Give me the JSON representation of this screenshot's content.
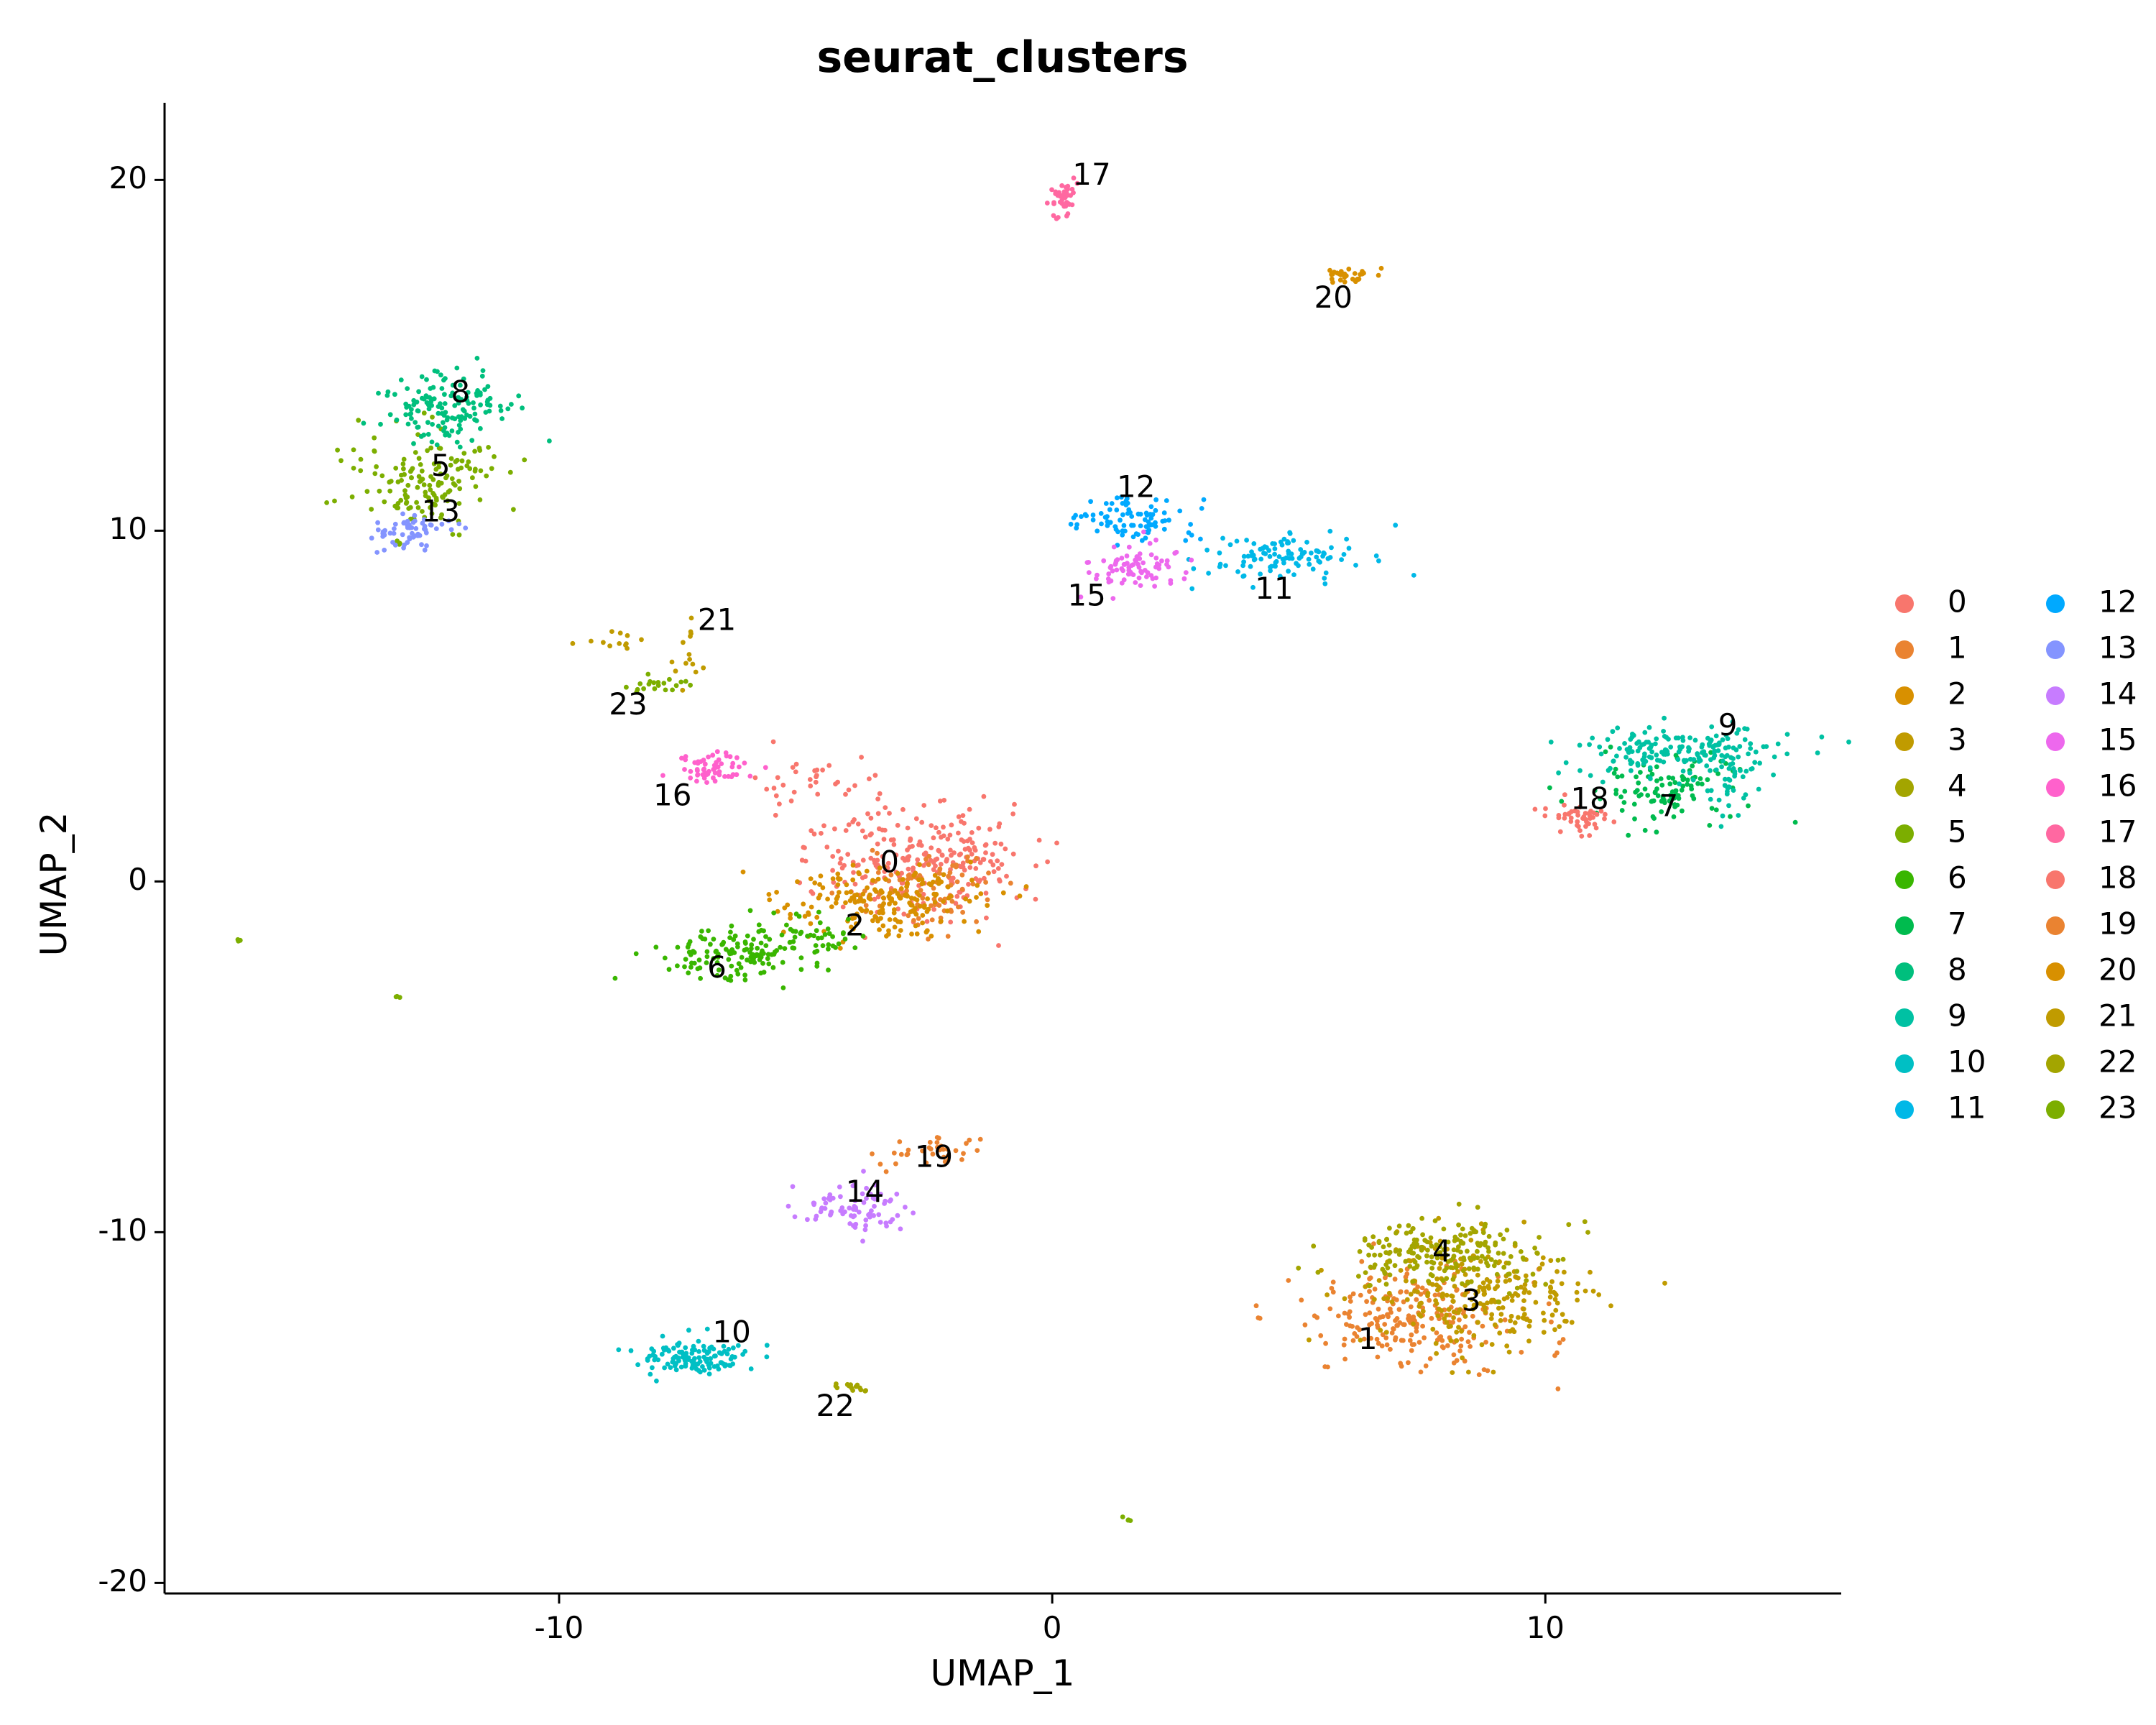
{
  "chart_data": {
    "type": "scatter",
    "title": "seurat_clusters",
    "xlabel": "UMAP_1",
    "ylabel": "UMAP_2",
    "xlim": [
      -18,
      16
    ],
    "ylim": [
      -20.3,
      22.2
    ],
    "x_ticks": [
      {
        "value": -10,
        "label": "-10"
      },
      {
        "value": 0,
        "label": "0"
      },
      {
        "value": 10,
        "label": "10"
      }
    ],
    "y_ticks": [
      {
        "value": -20,
        "label": "-20"
      },
      {
        "value": -10,
        "label": "-10"
      },
      {
        "value": 0,
        "label": "0"
      },
      {
        "value": 10,
        "label": "10"
      },
      {
        "value": 20,
        "label": "20"
      }
    ],
    "grid": false,
    "legend_position": "right",
    "legend_columns": 2,
    "clusters": [
      {
        "id": "0",
        "color": "#F8766D",
        "label_pos": [
          -3.3,
          0.5
        ],
        "groups": [
          {
            "c": [
              -2.6,
              0.6
            ],
            "s": [
              1.3,
              0.9
            ],
            "n": 260
          },
          {
            "c": [
              -5.0,
              2.8
            ],
            "s": [
              0.9,
              0.5
            ],
            "n": 30
          }
        ]
      },
      {
        "id": "1",
        "color": "#EA8331",
        "label_pos": [
          6.4,
          -13.1
        ],
        "groups": [
          {
            "c": [
              7.3,
              -12.4
            ],
            "s": [
              1.3,
              0.9
            ],
            "n": 230
          },
          {
            "c": [
              -2.5,
              -0.2
            ],
            "s": [
              0.8,
              0.7
            ],
            "n": 80
          }
        ]
      },
      {
        "id": "2",
        "color": "#D89000",
        "label_pos": [
          -4.0,
          -1.3
        ],
        "groups": [
          {
            "c": [
              -3.4,
              -0.6
            ],
            "s": [
              1.2,
              0.6
            ],
            "n": 200
          }
        ]
      },
      {
        "id": "3",
        "color": "#C09B00",
        "label_pos": [
          8.5,
          -12.0
        ],
        "groups": [
          {
            "c": [
              8.6,
              -11.8
            ],
            "s": [
              1.4,
              0.9
            ],
            "n": 240
          }
        ]
      },
      {
        "id": "4",
        "color": "#A3A500",
        "label_pos": [
          7.9,
          -10.6
        ],
        "groups": [
          {
            "c": [
              8.0,
              -10.6
            ],
            "s": [
              1.2,
              0.6
            ],
            "n": 200
          }
        ]
      },
      {
        "id": "5",
        "color": "#7CAE00",
        "label_pos": [
          -12.4,
          11.8
        ],
        "groups": [
          {
            "c": [
              -12.6,
              11.5
            ],
            "s": [
              0.8,
              0.8
            ],
            "n": 150
          }
        ]
      },
      {
        "id": "6",
        "color": "#39B600",
        "label_pos": [
          -6.8,
          -2.5
        ],
        "groups": [
          {
            "c": [
              -6.4,
              -2.1
            ],
            "s": [
              0.9,
              0.5
            ],
            "n": 130
          },
          {
            "c": [
              -4.8,
              -1.6
            ],
            "s": [
              0.7,
              0.4
            ],
            "n": 40
          }
        ]
      },
      {
        "id": "7",
        "color": "#00BB4E",
        "label_pos": [
          12.5,
          2.1
        ],
        "groups": [
          {
            "c": [
              12.5,
              2.6
            ],
            "s": [
              1.0,
              0.6
            ],
            "n": 110
          }
        ]
      },
      {
        "id": "8",
        "color": "#00BF7D",
        "label_pos": [
          -12.0,
          13.9
        ],
        "groups": [
          {
            "c": [
              -12.3,
              13.5
            ],
            "s": [
              0.8,
              0.6
            ],
            "n": 140
          }
        ]
      },
      {
        "id": "9",
        "color": "#00C1A3",
        "label_pos": [
          13.7,
          4.4
        ],
        "groups": [
          {
            "c": [
              12.5,
              3.7
            ],
            "s": [
              1.2,
              0.4
            ],
            "n": 160
          },
          {
            "c": [
              13.8,
              3.0
            ],
            "s": [
              0.4,
              0.8
            ],
            "n": 50
          }
        ]
      },
      {
        "id": "10",
        "color": "#00BFC4",
        "label_pos": [
          -6.5,
          -12.9
        ],
        "groups": [
          {
            "c": [
              -7.2,
              -13.6
            ],
            "s": [
              0.7,
              0.3
            ],
            "n": 130
          }
        ]
      },
      {
        "id": "11",
        "color": "#00B8E7",
        "label_pos": [
          4.5,
          8.3
        ],
        "groups": [
          {
            "c": [
              4.8,
              9.2
            ],
            "s": [
              1.0,
              0.4
            ],
            "n": 110
          }
        ]
      },
      {
        "id": "12",
        "color": "#00A9FF",
        "label_pos": [
          1.7,
          11.2
        ],
        "groups": [
          {
            "c": [
              1.6,
              10.3
            ],
            "s": [
              0.8,
              0.4
            ],
            "n": 90
          }
        ]
      },
      {
        "id": "13",
        "color": "#8494FF",
        "label_pos": [
          -12.4,
          10.5
        ],
        "groups": [
          {
            "c": [
              -13.1,
              10.0
            ],
            "s": [
              0.5,
              0.3
            ],
            "n": 60
          }
        ]
      },
      {
        "id": "14",
        "color": "#C77CFF",
        "label_pos": [
          -3.8,
          -8.9
        ],
        "groups": [
          {
            "c": [
              -4.0,
              -9.3
            ],
            "s": [
              0.6,
              0.4
            ],
            "n": 80
          }
        ]
      },
      {
        "id": "15",
        "color": "#ED68ED",
        "label_pos": [
          0.7,
          8.1
        ],
        "groups": [
          {
            "c": [
              1.6,
              9.0
            ],
            "s": [
              0.6,
              0.4
            ],
            "n": 80
          }
        ]
      },
      {
        "id": "16",
        "color": "#FF61CC",
        "label_pos": [
          -7.7,
          2.4
        ],
        "groups": [
          {
            "c": [
              -6.9,
              3.2
            ],
            "s": [
              0.4,
              0.3
            ],
            "n": 60
          }
        ]
      },
      {
        "id": "17",
        "color": "#FF68A1",
        "label_pos": [
          0.8,
          20.1
        ],
        "groups": [
          {
            "c": [
              0.2,
              19.5
            ],
            "s": [
              0.15,
              0.3
            ],
            "n": 45
          }
        ]
      },
      {
        "id": "18",
        "color": "#F8766D",
        "label_pos": [
          10.9,
          2.3
        ],
        "groups": [
          {
            "c": [
              10.7,
              1.8
            ],
            "s": [
              0.5,
              0.3
            ],
            "n": 45
          }
        ]
      },
      {
        "id": "19",
        "color": "#EA8331",
        "label_pos": [
          -2.4,
          -7.9
        ],
        "groups": [
          {
            "c": [
              -2.4,
              -7.7
            ],
            "s": [
              0.6,
              0.25
            ],
            "n": 35
          }
        ]
      },
      {
        "id": "20",
        "color": "#D89000",
        "label_pos": [
          5.7,
          16.6
        ],
        "groups": [
          {
            "c": [
              6.0,
              17.3
            ],
            "s": [
              0.3,
              0.1
            ],
            "n": 30
          }
        ]
      },
      {
        "id": "21",
        "color": "#C09B00",
        "label_pos": [
          -6.8,
          7.4
        ],
        "groups": [
          {
            "c": [
              -7.4,
              6.4
            ],
            "s": [
              0.2,
              0.5
            ],
            "n": 14
          },
          {
            "c": [
              -8.9,
              6.8
            ],
            "s": [
              0.4,
              0.2
            ],
            "n": 12
          }
        ]
      },
      {
        "id": "22",
        "color": "#A3A500",
        "label_pos": [
          -4.4,
          -15.0
        ],
        "groups": [
          {
            "c": [
              -4.1,
              -14.4
            ],
            "s": [
              0.3,
              0.08
            ],
            "n": 14
          }
        ]
      },
      {
        "id": "23",
        "color": "#7CAE00",
        "label_pos": [
          -8.6,
          5.0
        ],
        "groups": [
          {
            "c": [
              -7.9,
              5.6
            ],
            "s": [
              0.4,
              0.15
            ],
            "n": 20
          },
          {
            "c": [
              -13.3,
              -3.3
            ],
            "s": [
              0.05,
              0.05
            ],
            "n": 3
          },
          {
            "c": [
              1.6,
              -18.2
            ],
            "s": [
              0.08,
              0.05
            ],
            "n": 4
          },
          {
            "c": [
              -16.5,
              -1.7
            ],
            "s": [
              0.05,
              0.05
            ],
            "n": 3
          }
        ]
      }
    ]
  }
}
